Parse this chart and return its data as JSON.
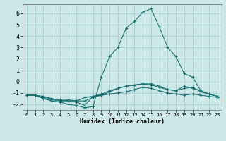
{
  "xlabel": "Humidex (Indice chaleur)",
  "bg_color": "#cce8e8",
  "grid_color": "#aacccc",
  "line_color": "#1a7070",
  "xlim": [
    -0.5,
    23.5
  ],
  "ylim": [
    -2.5,
    6.8
  ],
  "xticks": [
    0,
    1,
    2,
    3,
    4,
    5,
    6,
    7,
    8,
    9,
    10,
    11,
    12,
    13,
    14,
    15,
    16,
    17,
    18,
    19,
    20,
    21,
    22,
    23
  ],
  "yticks": [
    -2,
    -1,
    0,
    1,
    2,
    3,
    4,
    5,
    6
  ],
  "series": [
    {
      "x": [
        0,
        1,
        2,
        3,
        4,
        5,
        6,
        7,
        8,
        9,
        10,
        11,
        12,
        13,
        14,
        15,
        16,
        17,
        18,
        19,
        20,
        21,
        22,
        23
      ],
      "y": [
        -1.2,
        -1.2,
        -1.4,
        -1.5,
        -1.6,
        -1.7,
        -1.8,
        -2.1,
        -1.3,
        -1.2,
        -1.1,
        -1.0,
        -0.9,
        -0.7,
        -0.5,
        -0.6,
        -0.8,
        -1.0,
        -1.1,
        -1.2,
        -1.1,
        -1.2,
        -1.3,
        -1.4
      ]
    },
    {
      "x": [
        0,
        1,
        2,
        3,
        4,
        5,
        6,
        7,
        8,
        9,
        10,
        11,
        12,
        13,
        14,
        15,
        16,
        17,
        18,
        19,
        20,
        21,
        22,
        23
      ],
      "y": [
        -1.2,
        -1.2,
        -1.5,
        -1.6,
        -1.7,
        -1.7,
        -1.7,
        -1.7,
        -1.4,
        -1.2,
        -0.9,
        -0.6,
        -0.4,
        -0.3,
        -0.2,
        -0.3,
        -0.5,
        -0.7,
        -0.8,
        -0.6,
        -0.5,
        -0.9,
        -1.1,
        -1.3
      ]
    },
    {
      "x": [
        0,
        1,
        2,
        3,
        4,
        5,
        6,
        7,
        8,
        9,
        10,
        11,
        12,
        13,
        14,
        15,
        16,
        17,
        18,
        19,
        20,
        21,
        22,
        23
      ],
      "y": [
        -1.2,
        -1.2,
        -1.5,
        -1.7,
        -1.8,
        -2.0,
        -2.1,
        -2.3,
        -2.2,
        0.4,
        2.2,
        3.0,
        4.7,
        5.3,
        6.1,
        6.4,
        4.8,
        3.0,
        2.2,
        0.7,
        0.4,
        -0.8,
        -1.1,
        -1.3
      ]
    },
    {
      "x": [
        0,
        1,
        2,
        3,
        4,
        5,
        6,
        7,
        8,
        9,
        10,
        11,
        12,
        13,
        14,
        15,
        16,
        17,
        18,
        19,
        20,
        21,
        22,
        23
      ],
      "y": [
        -1.2,
        -1.2,
        -1.3,
        -1.5,
        -1.7,
        -1.6,
        -1.7,
        -1.4,
        -1.3,
        -1.1,
        -0.8,
        -0.6,
        -0.4,
        -0.3,
        -0.2,
        -0.2,
        -0.4,
        -0.7,
        -0.8,
        -0.4,
        -0.6,
        -0.8,
        -1.1,
        -1.3
      ]
    }
  ]
}
